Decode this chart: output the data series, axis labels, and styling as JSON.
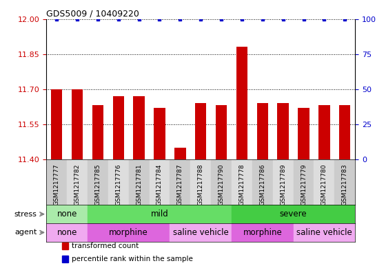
{
  "title": "GDS5009 / 10409220",
  "samples": [
    "GSM1217777",
    "GSM1217782",
    "GSM1217785",
    "GSM1217776",
    "GSM1217781",
    "GSM1217784",
    "GSM1217787",
    "GSM1217788",
    "GSM1217790",
    "GSM1217778",
    "GSM1217786",
    "GSM1217789",
    "GSM1217779",
    "GSM1217780",
    "GSM1217783"
  ],
  "transformed_counts": [
    11.7,
    11.7,
    11.63,
    11.67,
    11.67,
    11.62,
    11.45,
    11.64,
    11.63,
    11.88,
    11.64,
    11.64,
    11.62,
    11.63,
    11.63
  ],
  "ylim_left": [
    11.4,
    12.0
  ],
  "ylim_right": [
    0,
    100
  ],
  "yticks_left": [
    11.4,
    11.55,
    11.7,
    11.85,
    12.0
  ],
  "yticks_right": [
    0,
    25,
    50,
    75,
    100
  ],
  "bar_color": "#cc0000",
  "dot_color": "#0000cc",
  "bar_bottom": 11.4,
  "stress_groups": [
    {
      "label": "none",
      "start": 0,
      "end": 2,
      "color": "#aaeaaa"
    },
    {
      "label": "mild",
      "start": 2,
      "end": 9,
      "color": "#66dd66"
    },
    {
      "label": "severe",
      "start": 9,
      "end": 15,
      "color": "#44cc44"
    }
  ],
  "agent_groups": [
    {
      "label": "none",
      "start": 0,
      "end": 2,
      "color": "#f0aaf0"
    },
    {
      "label": "morphine",
      "start": 2,
      "end": 6,
      "color": "#dd66dd"
    },
    {
      "label": "saline vehicle",
      "start": 6,
      "end": 9,
      "color": "#f0aaf0"
    },
    {
      "label": "morphine",
      "start": 9,
      "end": 12,
      "color": "#dd66dd"
    },
    {
      "label": "saline vehicle",
      "start": 12,
      "end": 15,
      "color": "#f0aaf0"
    }
  ],
  "tick_label_color_left": "#cc0000",
  "tick_label_color_right": "#0000cc",
  "legend_items": [
    {
      "label": "transformed count",
      "color": "#cc0000"
    },
    {
      "label": "percentile rank within the sample",
      "color": "#0000cc"
    }
  ]
}
